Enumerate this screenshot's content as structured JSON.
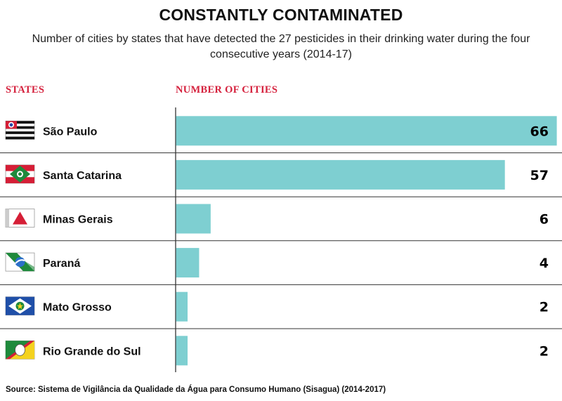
{
  "header": {
    "title": "CONSTANTLY CONTAMINATED",
    "subtitle": "Number of cities by states that have detected the 27 pesticides in their drinking water during the four consecutive years (2014-17)",
    "states_col": "STATES",
    "cities_col": "NUMBER OF CITIES"
  },
  "chart_data": {
    "type": "bar",
    "orientation": "horizontal",
    "title": "CONSTANTLY CONTAMINATED",
    "xlabel": "NUMBER OF CITIES",
    "ylabel": "STATES",
    "xlim": [
      0,
      66
    ],
    "grid": false,
    "bar_color": "#7ecfd1",
    "categories": [
      "São Paulo",
      "Santa Catarina",
      "Minas Gerais",
      "Paraná",
      "Mato Grosso",
      "Rio Grande do Sul"
    ],
    "flags": [
      "sao-paulo-flag-icon",
      "santa-catarina-flag-icon",
      "minas-gerais-flag-icon",
      "parana-flag-icon",
      "mato-grosso-flag-icon",
      "rio-grande-do-sul-flag-icon"
    ],
    "values": [
      66,
      57,
      6,
      4,
      2,
      2
    ]
  },
  "footer": {
    "source": "Source: Sistema de Vigilância da Qualidade da Água para Consumo Humano (Sisagua) (2014-2017)"
  }
}
